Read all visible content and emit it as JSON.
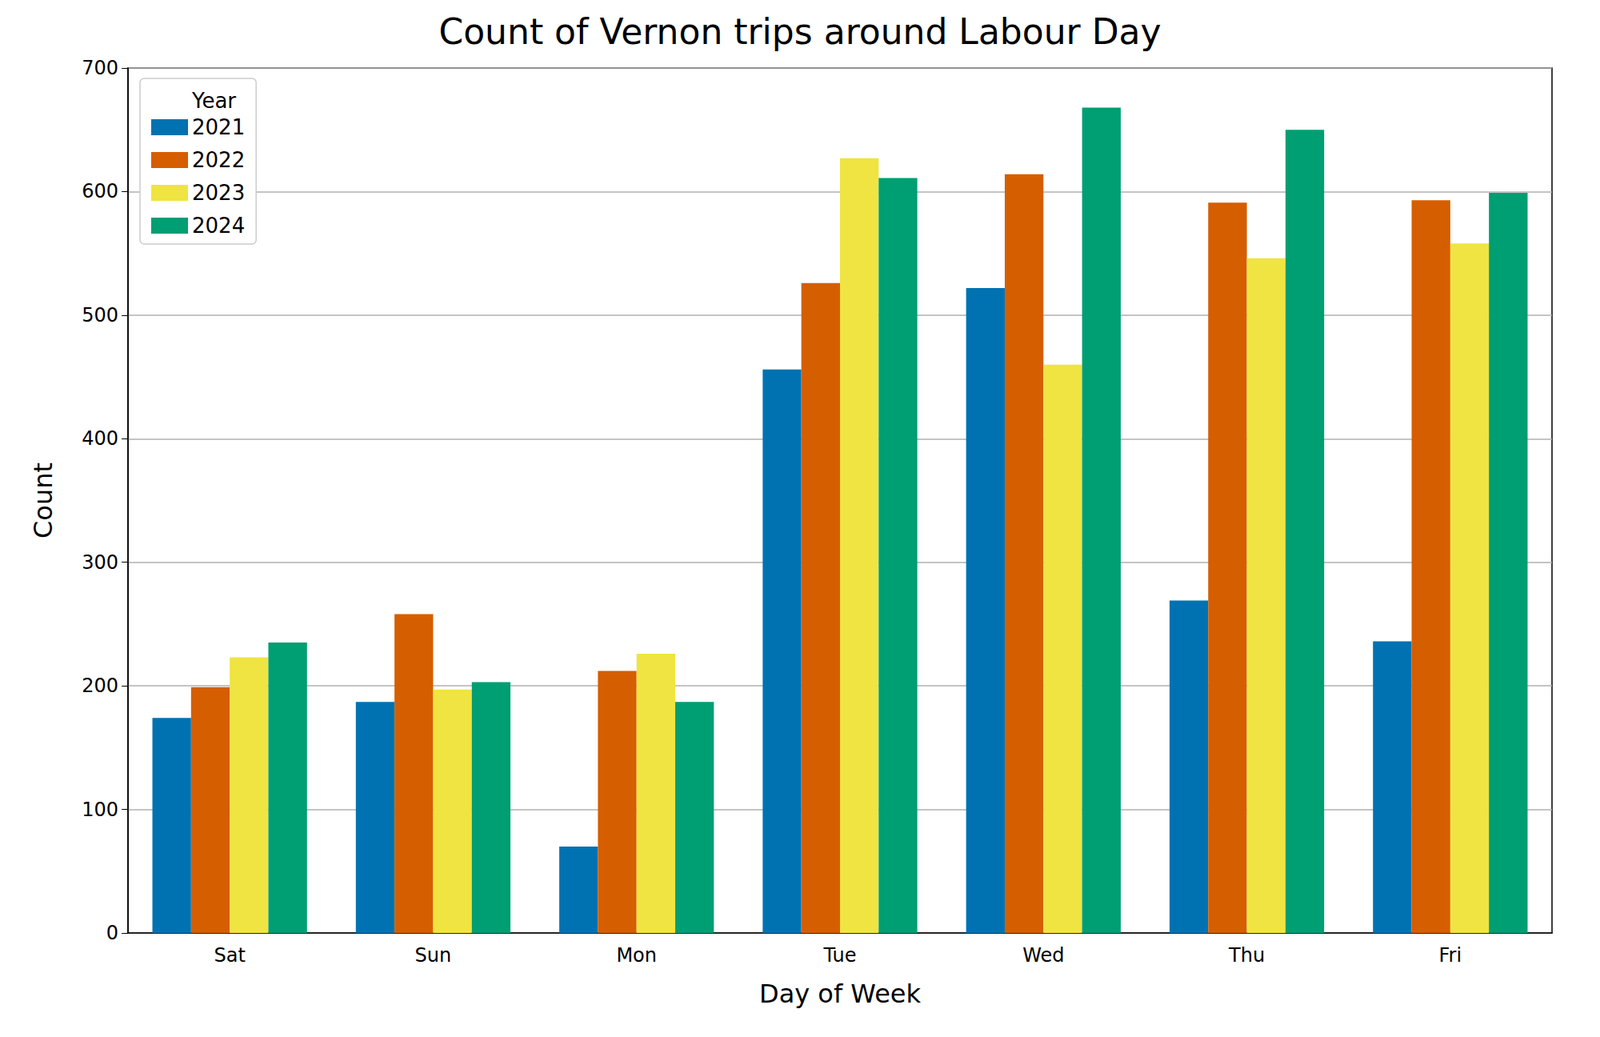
{
  "chart_data": {
    "type": "bar",
    "title": "Count of Vernon trips around Labour Day",
    "x_label": "Day of Week",
    "y_label": "Count",
    "legend_title": "Year",
    "legend": "upper left",
    "categories": [
      "Sat",
      "Sun",
      "Mon",
      "Tue",
      "Wed",
      "Thu",
      "Fri"
    ],
    "series": [
      {
        "name": "2021",
        "color": "#0072b2",
        "values": [
          174,
          187,
          70,
          456,
          522,
          269,
          236
        ]
      },
      {
        "name": "2022",
        "color": "#d55e00",
        "values": [
          199,
          258,
          212,
          526,
          614,
          591,
          593
        ]
      },
      {
        "name": "2023",
        "color": "#f0e442",
        "values": [
          223,
          197,
          226,
          627,
          460,
          546,
          558
        ]
      },
      {
        "name": "2024",
        "color": "#009e73",
        "values": [
          235,
          203,
          187,
          611,
          668,
          650,
          599
        ]
      }
    ],
    "ylim": [
      0,
      700
    ],
    "yticks": [
      0,
      100,
      200,
      300,
      400,
      500,
      600,
      700
    ],
    "grid": true
  }
}
